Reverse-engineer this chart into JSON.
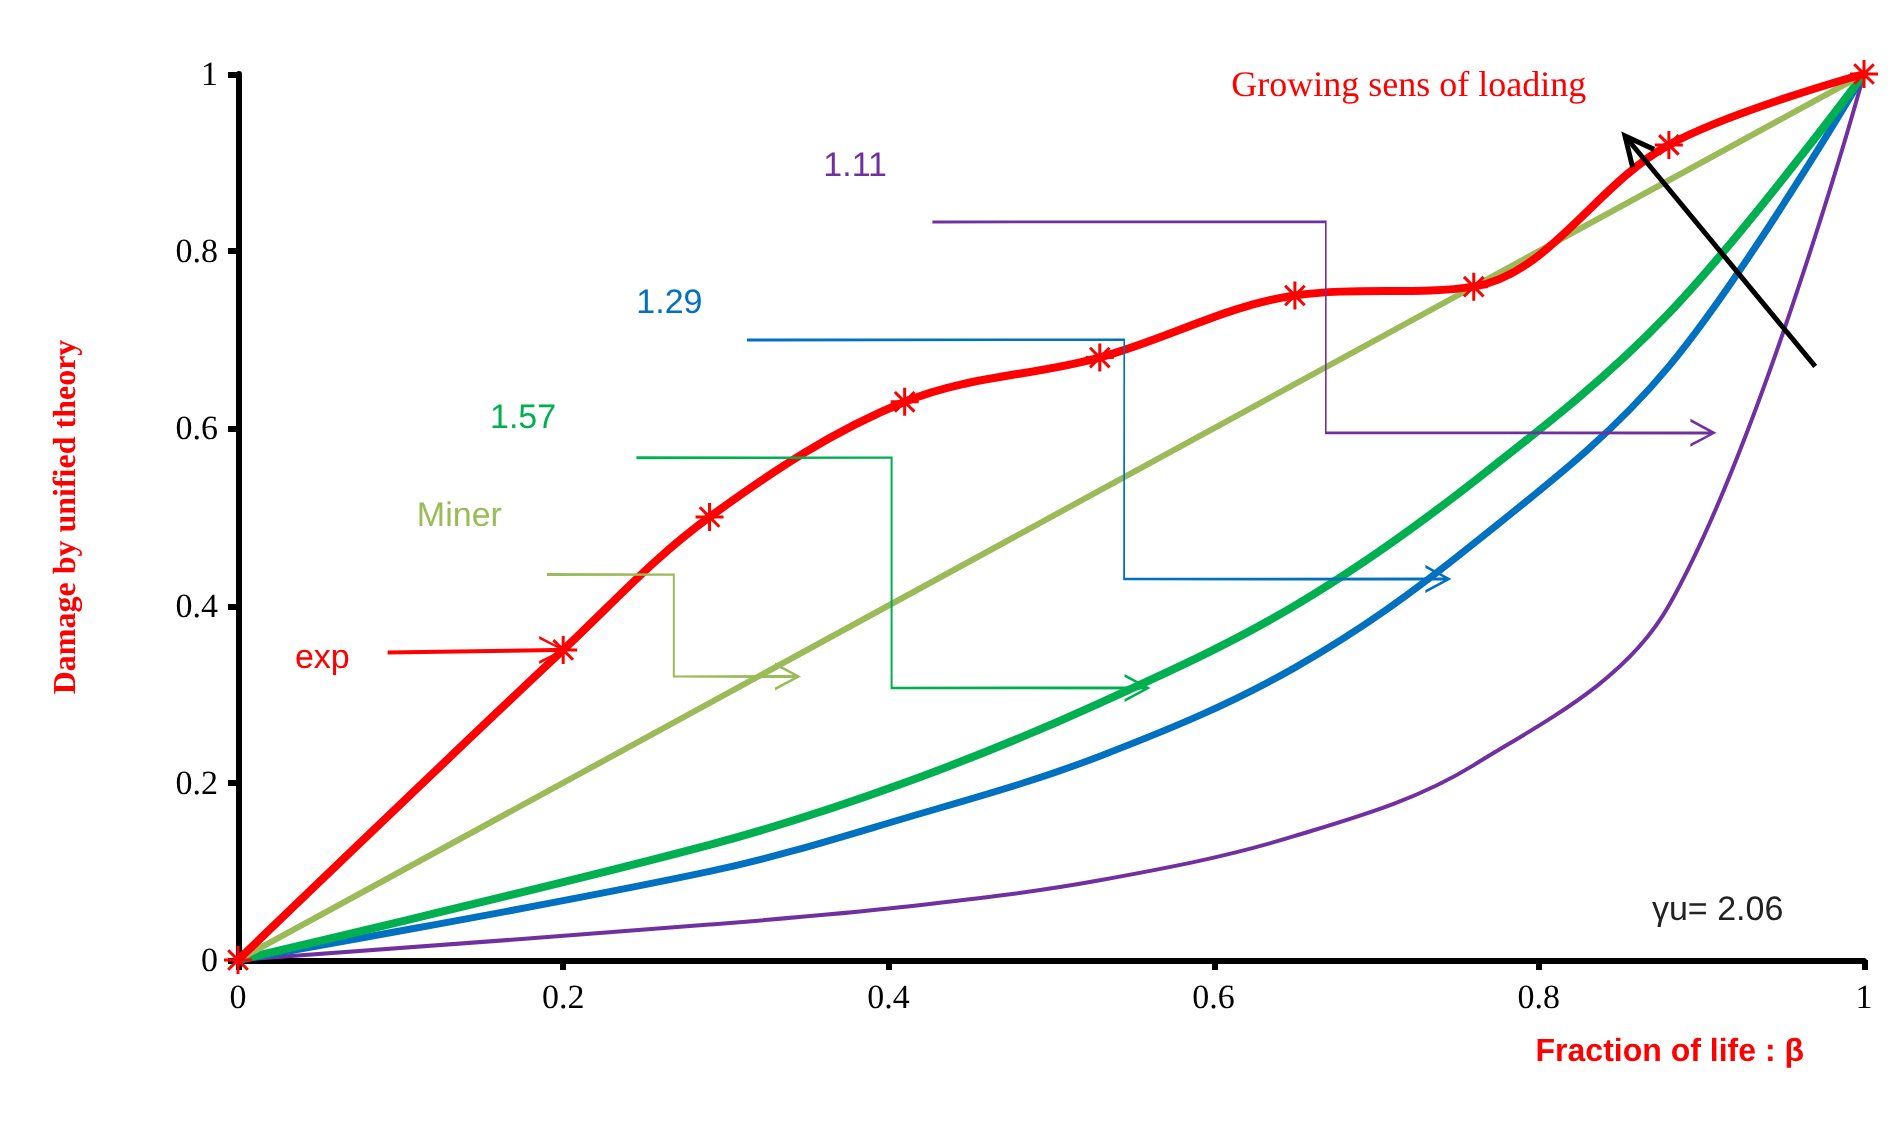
{
  "chart_data": {
    "type": "line",
    "xlabel": "Fraction of life : β",
    "ylabel": "Damage by unified theory",
    "series": [
      {
        "name": "exp",
        "color": "#ff0000",
        "marker": "cross",
        "x": [
          0,
          0.2,
          0.29,
          0.41,
          0.53,
          0.65,
          0.76,
          0.88,
          1
        ],
        "values": [
          0,
          0.35,
          0.5,
          0.63,
          0.68,
          0.75,
          0.76,
          0.92,
          1
        ]
      },
      {
        "name": "Miner",
        "color": "#9bbb59",
        "x": [
          0,
          1
        ],
        "values": [
          0,
          1
        ]
      },
      {
        "name": "1.57",
        "color": "#00b050",
        "x": [
          0,
          0.29,
          0.41,
          0.53,
          0.65,
          0.76,
          0.88,
          1
        ],
        "values": [
          0,
          0.13,
          0.2,
          0.29,
          0.4,
          0.54,
          0.73,
          1
        ]
      },
      {
        "name": "1.29",
        "color": "#0070c0",
        "x": [
          0,
          0.29,
          0.41,
          0.53,
          0.65,
          0.76,
          0.88,
          1
        ],
        "values": [
          0,
          0.1,
          0.16,
          0.23,
          0.33,
          0.47,
          0.67,
          1
        ]
      },
      {
        "name": "1.11",
        "color": "#7030a0",
        "x": [
          0,
          0.29,
          0.41,
          0.53,
          0.65,
          0.76,
          0.88,
          1
        ],
        "values": [
          0,
          0.04,
          0.06,
          0.09,
          0.14,
          0.22,
          0.4,
          1
        ]
      }
    ],
    "annotations": [
      "Growing sens of loading",
      "γu= 2.06"
    ],
    "xlim": [
      0,
      1
    ],
    "ylim": [
      0,
      1
    ],
    "xticks": [
      0,
      0.2,
      0.4,
      0.6,
      0.8,
      1
    ],
    "yticks": [
      0,
      0.2,
      0.4,
      0.6,
      0.8,
      1
    ],
    "grid": false,
    "legend": false,
    "marker": "none",
    "line_style": "solid"
  }
}
